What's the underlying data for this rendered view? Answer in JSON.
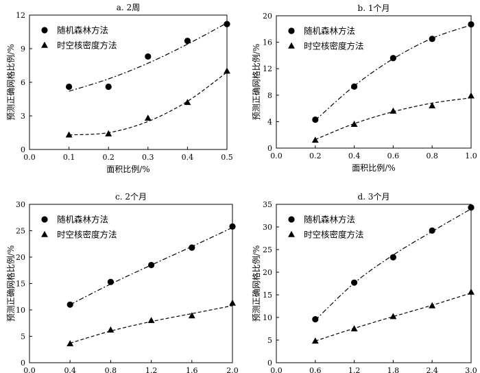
{
  "chart_data": [
    {
      "type": "scatter",
      "title": "a. 2周",
      "xlabel": "面积比例/%",
      "ylabel": "预测正确网格比例/%",
      "xlim": [
        0.0,
        0.5
      ],
      "ylim": [
        0,
        12
      ],
      "x_ticks": [
        "0.0",
        "0.1",
        "0.2",
        "0.3",
        "0.4",
        "0.5"
      ],
      "y_ticks": [
        "0",
        "3",
        "6",
        "9",
        "12"
      ],
      "legend_position": "top-left",
      "grid": false,
      "series": [
        {
          "name": "随机森林方法",
          "marker": "circle",
          "trend_line": "dash-dot",
          "x": [
            0.1,
            0.2,
            0.3,
            0.4,
            0.5
          ],
          "y": [
            5.6,
            5.6,
            8.3,
            9.7,
            11.2
          ],
          "trend": [
            [
              0.1,
              5.2
            ],
            [
              0.2,
              6.3
            ],
            [
              0.3,
              7.7
            ],
            [
              0.4,
              9.4
            ],
            [
              0.5,
              11.3
            ]
          ]
        },
        {
          "name": "时空核密度方法",
          "marker": "triangle",
          "trend_line": "dashed",
          "x": [
            0.1,
            0.2,
            0.3,
            0.4,
            0.5
          ],
          "y": [
            1.3,
            1.4,
            2.8,
            4.2,
            7.0
          ],
          "trend": [
            [
              0.1,
              1.3
            ],
            [
              0.2,
              1.5
            ],
            [
              0.3,
              2.5
            ],
            [
              0.4,
              4.3
            ],
            [
              0.5,
              6.9
            ]
          ]
        }
      ]
    },
    {
      "type": "scatter",
      "title": "b. 1个月",
      "xlabel": "面积比例/%",
      "ylabel": "预测正确网格比例/%",
      "xlim": [
        0.0,
        1.0
      ],
      "ylim": [
        0,
        20
      ],
      "x_ticks": [
        "0.0",
        "0.2",
        "0.4",
        "0.6",
        "0.8",
        "1.0"
      ],
      "y_ticks": [
        "0",
        "4",
        "8",
        "12",
        "16",
        "20"
      ],
      "legend_position": "top-left",
      "grid": false,
      "series": [
        {
          "name": "随机森林方法",
          "marker": "circle",
          "trend_line": "dash-dot",
          "x": [
            0.2,
            0.4,
            0.6,
            0.8,
            1.0
          ],
          "y": [
            4.3,
            9.3,
            13.6,
            16.5,
            18.7
          ],
          "trend": [
            [
              0.2,
              4.2
            ],
            [
              0.4,
              9.4
            ],
            [
              0.6,
              13.5
            ],
            [
              0.8,
              16.6
            ],
            [
              1.0,
              18.6
            ]
          ]
        },
        {
          "name": "时空核密度方法",
          "marker": "triangle",
          "trend_line": "dashed",
          "x": [
            0.2,
            0.4,
            0.6,
            0.8,
            1.0
          ],
          "y": [
            1.2,
            3.6,
            5.6,
            6.4,
            7.9
          ],
          "trend": [
            [
              0.2,
              1.3
            ],
            [
              0.4,
              3.7
            ],
            [
              0.6,
              5.5
            ],
            [
              0.8,
              6.8
            ],
            [
              1.0,
              7.6
            ]
          ]
        }
      ]
    },
    {
      "type": "scatter",
      "title": "c. 2个月",
      "xlabel": "面积比例/%",
      "ylabel": "预测正确网格比例/%",
      "xlim": [
        0.0,
        2.0
      ],
      "ylim": [
        0,
        30
      ],
      "x_ticks": [
        "0.0",
        "0.4",
        "0.8",
        "1.2",
        "1.6",
        "2.0"
      ],
      "y_ticks": [
        "0",
        "5",
        "10",
        "15",
        "20",
        "25",
        "30"
      ],
      "legend_position": "top-left",
      "grid": false,
      "series": [
        {
          "name": "随机森林方法",
          "marker": "circle",
          "trend_line": "dash-dot",
          "x": [
            0.4,
            0.8,
            1.2,
            1.6,
            2.0
          ],
          "y": [
            11.0,
            15.3,
            18.5,
            21.8,
            25.8
          ],
          "trend": [
            [
              0.4,
              11.0
            ],
            [
              0.8,
              14.9
            ],
            [
              1.2,
              18.5
            ],
            [
              1.6,
              22.0
            ],
            [
              2.0,
              25.6
            ]
          ]
        },
        {
          "name": "时空核密度方法",
          "marker": "triangle",
          "trend_line": "dashed",
          "x": [
            0.4,
            0.8,
            1.2,
            1.6,
            2.0
          ],
          "y": [
            3.6,
            6.2,
            8.0,
            8.9,
            11.3
          ],
          "trend": [
            [
              0.4,
              3.7
            ],
            [
              0.8,
              6.0
            ],
            [
              1.2,
              7.8
            ],
            [
              1.6,
              9.3
            ],
            [
              2.0,
              10.8
            ]
          ]
        }
      ]
    },
    {
      "type": "scatter",
      "title": "d. 3个月",
      "xlabel": "面积比例/%",
      "ylabel": "预测正确网格比例/%",
      "xlim": [
        0.0,
        3.0
      ],
      "ylim": [
        0,
        35
      ],
      "x_ticks": [
        "0.0",
        "0.6",
        "1.2",
        "1.8",
        "2.4",
        "3.0"
      ],
      "y_ticks": [
        "0",
        "5",
        "10",
        "15",
        "20",
        "25",
        "30",
        "35"
      ],
      "legend_position": "top-left",
      "grid": false,
      "series": [
        {
          "name": "随机森林方法",
          "marker": "circle",
          "trend_line": "dash-dot",
          "x": [
            0.6,
            1.2,
            1.8,
            2.4,
            3.0
          ],
          "y": [
            9.6,
            17.7,
            23.3,
            29.2,
            34.3
          ],
          "trend": [
            [
              0.6,
              9.4
            ],
            [
              1.2,
              17.6
            ],
            [
              1.8,
              23.8
            ],
            [
              2.4,
              29.0
            ],
            [
              3.0,
              34.0
            ]
          ]
        },
        {
          "name": "时空核密度方法",
          "marker": "triangle",
          "trend_line": "dashed",
          "x": [
            0.6,
            1.2,
            1.8,
            2.4,
            3.0
          ],
          "y": [
            4.8,
            7.5,
            10.2,
            12.6,
            15.6
          ],
          "trend": [
            [
              0.6,
              4.8
            ],
            [
              1.2,
              7.6
            ],
            [
              1.8,
              10.2
            ],
            [
              2.4,
              12.7
            ],
            [
              3.0,
              15.4
            ]
          ]
        }
      ]
    }
  ]
}
